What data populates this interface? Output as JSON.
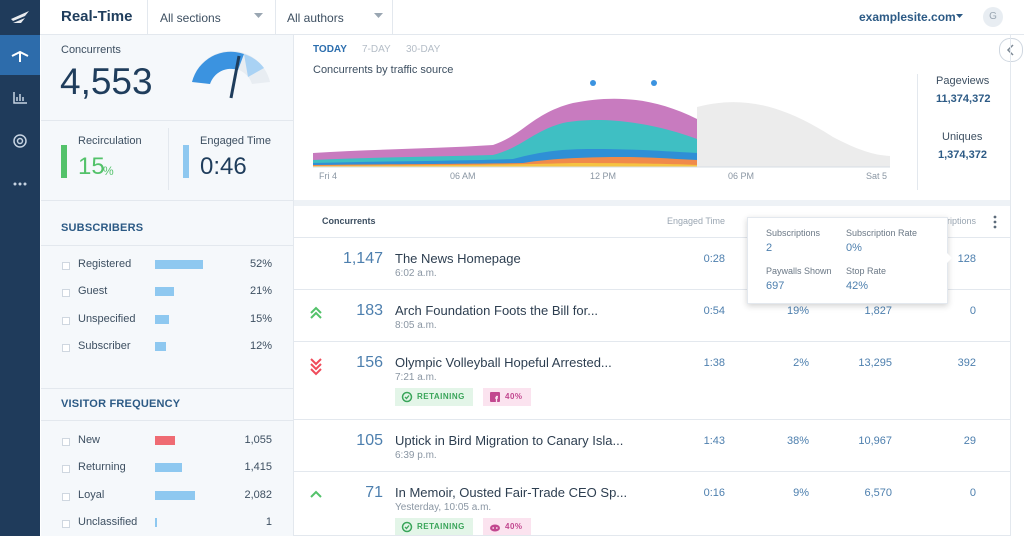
{
  "header": {
    "title": "Real-Time",
    "section_filter": "All sections",
    "author_filter": "All authors",
    "site": "examplesite.com",
    "avatar": "G"
  },
  "summary": {
    "concurrents_label": "Concurrents",
    "concurrents": "4,553",
    "recirculation_label": "Recirculation",
    "recirculation_value": "15",
    "recirculation_unit": "%",
    "engaged_time_label": "Engaged Time",
    "engaged_time_value": "0:46"
  },
  "subscribers": {
    "title": "SUBSCRIBERS",
    "color": "#8ec8f0",
    "rows": [
      {
        "label": "Registered",
        "value": 52,
        "value_label": "52%"
      },
      {
        "label": "Guest",
        "value": 21,
        "value_label": "21%"
      },
      {
        "label": "Unspecified",
        "value": 15,
        "value_label": "15%"
      },
      {
        "label": "Subscriber",
        "value": 12,
        "value_label": "12%"
      }
    ]
  },
  "visitor_frequency": {
    "title": "VISITOR FREQUENCY",
    "rows": [
      {
        "label": "New",
        "value": 1055,
        "value_label": "1,055",
        "color": "#ef6b73"
      },
      {
        "label": "Returning",
        "value": 1415,
        "value_label": "1,415",
        "color": "#8ec8f0"
      },
      {
        "label": "Loyal",
        "value": 2082,
        "value_label": "2,082",
        "color": "#8ec8f0"
      },
      {
        "label": "Unclassified",
        "value": 1,
        "value_label": "1",
        "color": "#8ec8f0"
      }
    ]
  },
  "traffic_chart": {
    "tabs": [
      "TODAY",
      "7-DAY",
      "30-DAY"
    ],
    "subtitle": "Concurrents by traffic source",
    "x_labels": [
      "Fri 4",
      "06 AM",
      "12 PM",
      "06 PM",
      "Sat 5"
    ]
  },
  "totals": {
    "pageviews_label": "Pageviews",
    "pageviews": "11,374,372",
    "uniques_label": "Uniques",
    "uniques": "1,374,372"
  },
  "table": {
    "columns": [
      "Concurrents",
      "Engaged Time",
      "Subscriptions"
    ],
    "rows": [
      {
        "concurrents": "1,147",
        "title": "The News Homepage",
        "time": "6:02 a.m.",
        "engaged_time": "0:28",
        "metric_4": "128"
      },
      {
        "trend": "up2",
        "concurrents": "183",
        "title": "Arch Foundation Foots the Bill for...",
        "time": "8:05 a.m.",
        "engaged_time": "0:54",
        "metric_2": "19%",
        "metric_3": "1,827",
        "metric_4": "0"
      },
      {
        "trend": "down3",
        "concurrents": "156",
        "title": "Olympic Volleyball Hopeful Arrested...",
        "time": "7:21 a.m.",
        "engaged_time": "1:38",
        "metric_2": "2%",
        "metric_3": "13,295",
        "metric_4": "392",
        "badges": [
          {
            "icon": "check",
            "label": "RETAINING"
          },
          {
            "icon": "facebook",
            "label": "40%"
          }
        ]
      },
      {
        "concurrents": "105",
        "title": "Uptick in Bird Migration to Canary Isla...",
        "time": "6:39 p.m.",
        "engaged_time": "1:43",
        "metric_2": "38%",
        "metric_3": "10,967",
        "metric_4": "29"
      },
      {
        "trend": "up1",
        "concurrents": "71",
        "title": "In Memoir, Ousted Fair-Trade CEO Sp...",
        "time": "Yesterday, 10:05 a.m.",
        "engaged_time": "0:16",
        "metric_2": "9%",
        "metric_3": "6,570",
        "metric_4": "0",
        "badges": [
          {
            "icon": "check",
            "label": "RETAINING"
          },
          {
            "icon": "reddit",
            "label": "40%"
          }
        ]
      }
    ]
  },
  "tooltip": {
    "items": [
      {
        "label": "Subscriptions",
        "value": "2"
      },
      {
        "label": "Subscription Rate",
        "value": "0%"
      },
      {
        "label": "Paywalls Shown",
        "value": "697"
      },
      {
        "label": "Stop Rate",
        "value": "42%"
      }
    ]
  }
}
